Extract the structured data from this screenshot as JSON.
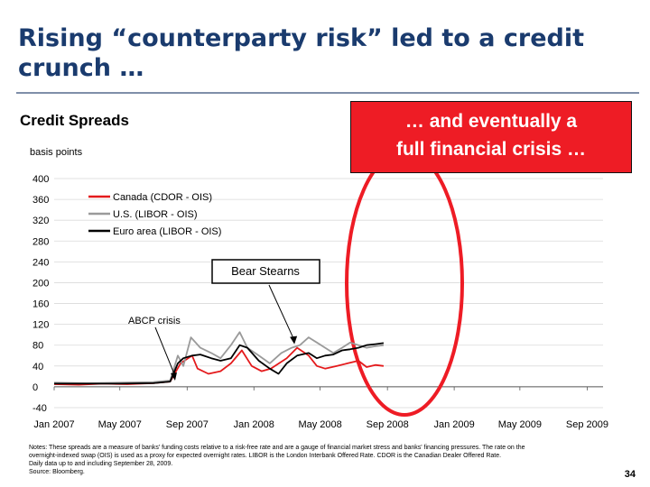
{
  "slide": {
    "title_line1": "Rising “counterparty risk” led to a credit",
    "title_line2": "crunch …",
    "page_number": "34"
  },
  "callout": {
    "line1": "… and eventually a",
    "line2": "full financial crisis …"
  },
  "notes": {
    "line1": "Notes: These spreads are a measure of banks' funding costs relative to a risk-free rate and are a gauge of financial market stress and banks' financing pressures. The rate on the",
    "line2": "overnight-indexed swap (OIS) is used as a proxy for expected overnight rates. LIBOR is the London Interbank Offered Rate. CDOR is the Canadian Dealer Offered Rate.",
    "line3": "Daily data up to and including September 28, 2009.",
    "line4": "Source: Bloomberg."
  },
  "chart_data": {
    "type": "line",
    "title": "Credit Spreads",
    "ylabel": "basis points",
    "ylim": [
      -40,
      400
    ],
    "yticks": [
      -40,
      0,
      40,
      80,
      120,
      160,
      200,
      240,
      280,
      320,
      360,
      400
    ],
    "xlim": [
      "2007-01-01",
      "2009-09-30"
    ],
    "xticks": [
      "Jan 2007",
      "May 2007",
      "Sep 2007",
      "Jan 2008",
      "May 2008",
      "Sep 2008",
      "Jan 2009",
      "May 2009",
      "Sep 2009"
    ],
    "grid": true,
    "legend_position": "top-left",
    "annotations": [
      {
        "label": "Bear Stearns",
        "date": "2008-03-15",
        "boxed": true
      },
      {
        "label": "ABCP crisis",
        "date": "2007-08-10",
        "boxed": false
      }
    ],
    "series": [
      {
        "name": "Canada (CDOR - OIS)",
        "color": "#e41a1c",
        "points": [
          [
            "2007-01-01",
            5
          ],
          [
            "2007-02-15",
            4
          ],
          [
            "2007-04-01",
            6
          ],
          [
            "2007-05-15",
            5
          ],
          [
            "2007-07-01",
            7
          ],
          [
            "2007-08-01",
            10
          ],
          [
            "2007-08-20",
            45
          ],
          [
            "2007-09-10",
            60
          ],
          [
            "2007-09-20",
            35
          ],
          [
            "2007-10-10",
            25
          ],
          [
            "2007-11-01",
            30
          ],
          [
            "2007-11-20",
            45
          ],
          [
            "2007-12-10",
            70
          ],
          [
            "2007-12-28",
            40
          ],
          [
            "2008-01-15",
            30
          ],
          [
            "2008-02-01",
            35
          ],
          [
            "2008-03-01",
            55
          ],
          [
            "2008-03-20",
            75
          ],
          [
            "2008-04-10",
            60
          ],
          [
            "2008-04-25",
            40
          ],
          [
            "2008-05-10",
            35
          ],
          [
            "2008-06-01",
            40
          ],
          [
            "2008-06-20",
            45
          ],
          [
            "2008-07-10",
            50
          ],
          [
            "2008-07-25",
            38
          ],
          [
            "2008-08-10",
            42
          ],
          [
            "2008-08-25",
            40
          ]
        ]
      },
      {
        "name": "U.S. (LIBOR - OIS)",
        "color": "#9a9a9a",
        "points": [
          [
            "2007-01-01",
            8
          ],
          [
            "2007-03-01",
            7
          ],
          [
            "2007-05-01",
            8
          ],
          [
            "2007-07-01",
            9
          ],
          [
            "2007-08-01",
            12
          ],
          [
            "2007-08-15",
            60
          ],
          [
            "2007-08-25",
            40
          ],
          [
            "2007-09-08",
            95
          ],
          [
            "2007-09-25",
            75
          ],
          [
            "2007-10-15",
            65
          ],
          [
            "2007-11-01",
            55
          ],
          [
            "2007-11-20",
            80
          ],
          [
            "2007-12-06",
            105
          ],
          [
            "2007-12-20",
            75
          ],
          [
            "2008-01-10",
            60
          ],
          [
            "2008-01-30",
            45
          ],
          [
            "2008-02-20",
            65
          ],
          [
            "2008-03-10",
            75
          ],
          [
            "2008-03-25",
            80
          ],
          [
            "2008-04-10",
            95
          ],
          [
            "2008-04-25",
            85
          ],
          [
            "2008-05-10",
            75
          ],
          [
            "2008-05-25",
            65
          ],
          [
            "2008-06-10",
            75
          ],
          [
            "2008-06-25",
            85
          ],
          [
            "2008-07-10",
            80
          ],
          [
            "2008-07-25",
            75
          ],
          [
            "2008-08-10",
            78
          ],
          [
            "2008-08-25",
            80
          ]
        ]
      },
      {
        "name": "Euro area (LIBOR - OIS)",
        "color": "#000000",
        "points": [
          [
            "2007-01-01",
            6
          ],
          [
            "2007-03-01",
            6
          ],
          [
            "2007-05-01",
            6
          ],
          [
            "2007-07-01",
            7
          ],
          [
            "2007-08-01",
            10
          ],
          [
            "2007-08-15",
            45
          ],
          [
            "2007-08-25",
            55
          ],
          [
            "2007-09-10",
            60
          ],
          [
            "2007-09-25",
            62
          ],
          [
            "2007-10-15",
            55
          ],
          [
            "2007-11-01",
            50
          ],
          [
            "2007-11-20",
            55
          ],
          [
            "2007-12-06",
            80
          ],
          [
            "2007-12-20",
            75
          ],
          [
            "2008-01-10",
            50
          ],
          [
            "2008-01-30",
            35
          ],
          [
            "2008-02-15",
            25
          ],
          [
            "2008-03-01",
            45
          ],
          [
            "2008-03-20",
            60
          ],
          [
            "2008-04-10",
            65
          ],
          [
            "2008-04-25",
            55
          ],
          [
            "2008-05-10",
            60
          ],
          [
            "2008-05-25",
            62
          ],
          [
            "2008-06-10",
            70
          ],
          [
            "2008-06-25",
            72
          ],
          [
            "2008-07-10",
            75
          ],
          [
            "2008-07-25",
            80
          ],
          [
            "2008-08-10",
            82
          ],
          [
            "2008-08-25",
            84
          ]
        ]
      }
    ]
  }
}
